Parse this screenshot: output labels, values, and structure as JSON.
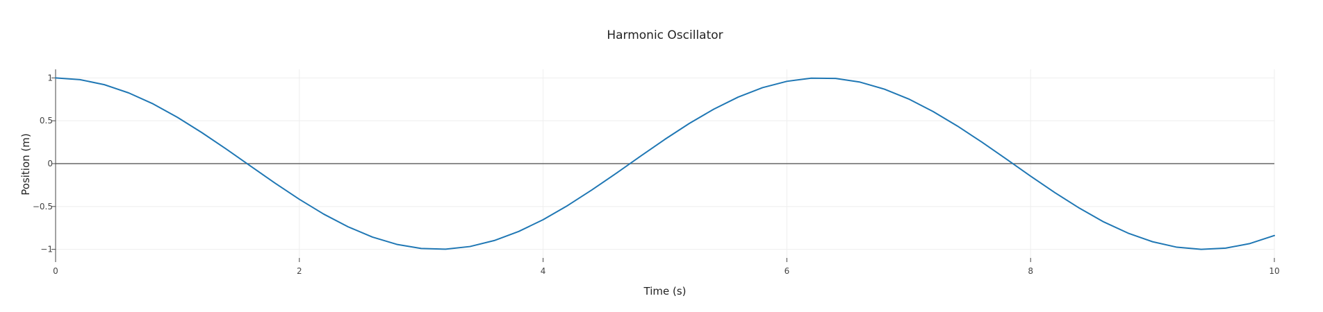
{
  "chart_data": {
    "type": "line",
    "title": "Harmonic Oscillator",
    "xlabel": "Time (s)",
    "ylabel": "Position (m)",
    "xlim": [
      0,
      10
    ],
    "ylim": [
      -1.1,
      1.1
    ],
    "x_ticks": [
      0,
      2,
      4,
      6,
      8,
      10
    ],
    "x_tick_labels": [
      "0",
      "2",
      "4",
      "6",
      "8",
      "10"
    ],
    "y_ticks": [
      -1,
      -0.5,
      0,
      0.5,
      1
    ],
    "y_tick_labels": [
      "−1",
      "−0.5",
      "0",
      "0.5",
      "1"
    ],
    "grid": true,
    "legend": "none",
    "series": [
      {
        "color": "#1f77b4",
        "x": [
          0,
          0.2,
          0.4,
          0.6,
          0.8,
          1.0,
          1.2,
          1.4,
          1.6,
          1.8,
          2.0,
          2.2,
          2.4,
          2.6,
          2.8,
          3.0,
          3.2,
          3.4,
          3.6,
          3.8,
          4.0,
          4.2,
          4.4,
          4.6,
          4.8,
          5.0,
          5.2,
          5.4,
          5.6,
          5.8,
          6.0,
          6.2,
          6.4,
          6.6,
          6.8,
          7.0,
          7.2,
          7.4,
          7.6,
          7.8,
          8.0,
          8.2,
          8.4,
          8.6,
          8.8,
          9.0,
          9.2,
          9.4,
          9.6,
          9.8,
          10.0
        ],
        "y": [
          1.0,
          0.98,
          0.921,
          0.825,
          0.697,
          0.54,
          0.362,
          0.17,
          -0.029,
          -0.227,
          -0.416,
          -0.589,
          -0.737,
          -0.857,
          -0.942,
          -0.99,
          -0.998,
          -0.967,
          -0.897,
          -0.791,
          -0.654,
          -0.49,
          -0.307,
          -0.113,
          0.087,
          0.284,
          0.469,
          0.635,
          0.776,
          0.886,
          0.96,
          0.997,
          0.994,
          0.951,
          0.869,
          0.754,
          0.608,
          0.438,
          0.251,
          0.054,
          -0.146,
          -0.339,
          -0.519,
          -0.68,
          -0.811,
          -0.911,
          -0.975,
          -1.0,
          -0.986,
          -0.932,
          -0.839
        ]
      }
    ]
  }
}
